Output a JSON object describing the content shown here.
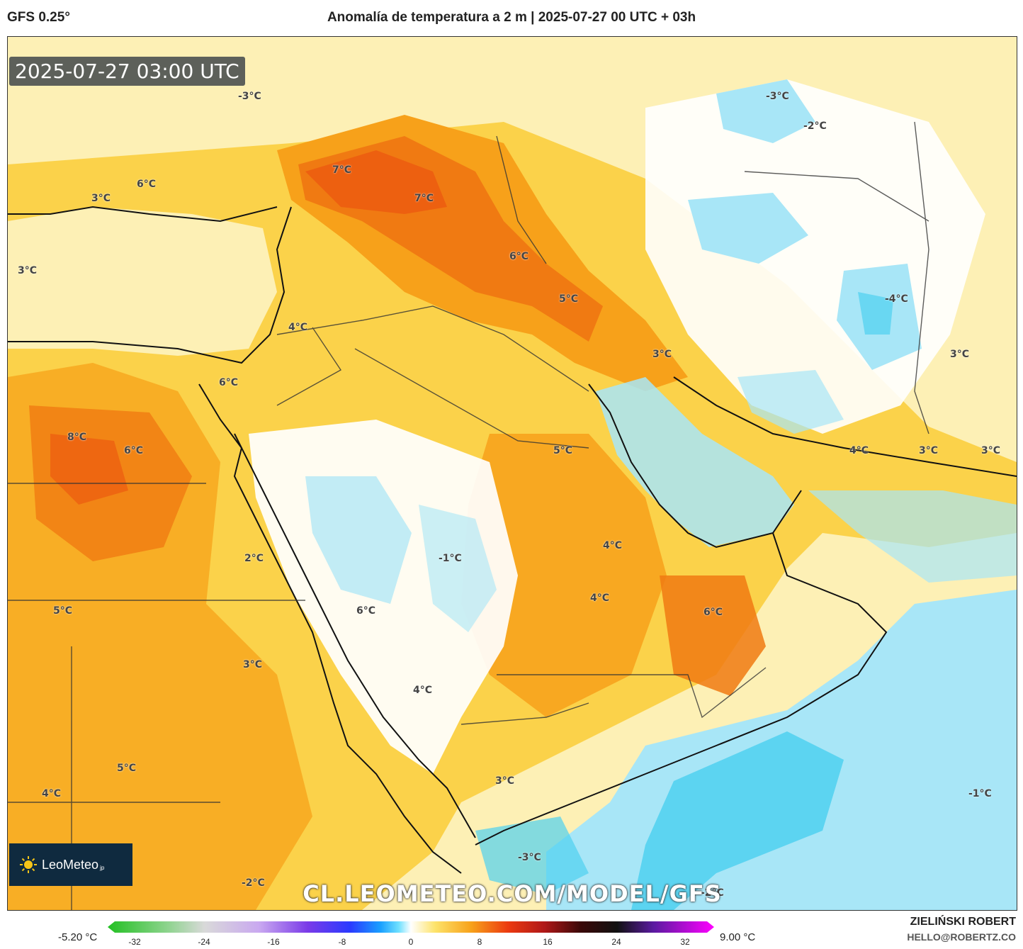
{
  "header": {
    "model": "GFS 0.25°",
    "title": "Anomalía de temperatura a 2 m | 2025-07-27 00 UTC + 03h"
  },
  "map": {
    "timestamp": "2025-07-27 03:00 UTC",
    "watermark": "CL.LEOMETEO.COM/MODEL/GFS",
    "logo_text": "LeoMeteo",
    "logo_suffix": "jp",
    "labels": [
      "-3°C",
      "-3°C",
      "-2°C",
      "6°C",
      "3°C",
      "7°C",
      "7°C",
      "6°C",
      "3°C",
      "5°C",
      "-4°C",
      "4°C",
      "3°C",
      "3°C",
      "6°C",
      "8°C",
      "6°C",
      "5°C",
      "4°C",
      "3°C",
      "3°C",
      "-1°C",
      "2°C",
      "4°C",
      "4°C",
      "6°C",
      "5°C",
      "6°C",
      "3°C",
      "4°C",
      "3°C",
      "5°C",
      "4°C",
      "-1°C",
      "-3°C",
      "-2°C",
      "-2°C"
    ]
  },
  "colorbar": {
    "min_label": "-5.20 °C",
    "max_label": "9.00 °C",
    "ticks": [
      "-32",
      "-24",
      "-16",
      "-8",
      "0",
      "8",
      "16",
      "24",
      "32"
    ]
  },
  "credits": {
    "author": "ZIELIŃSKI ROBERT",
    "email": "HELLO@ROBERTZ.CO"
  },
  "colors": {
    "cold_deep": "#4fd0f0",
    "cold": "#a8e6f7",
    "neutral": "#ffffff",
    "warm_light": "#fdf0b5",
    "warm": "#fbd24a",
    "hot": "#f7a11a",
    "hotter": "#f07a12",
    "hottest": "#ec5a10"
  }
}
